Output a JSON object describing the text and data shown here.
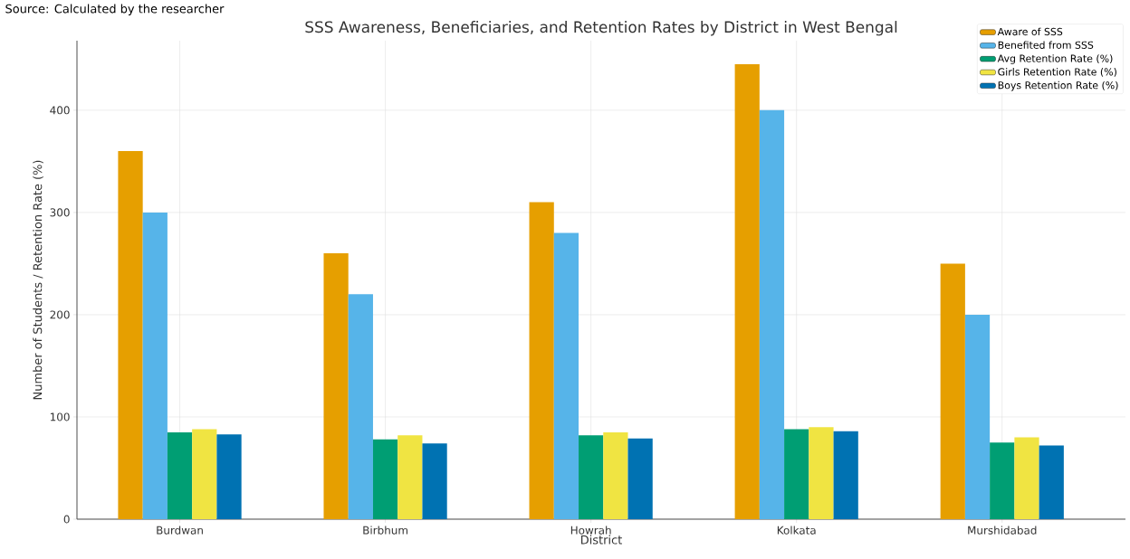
{
  "chart_data": {
    "type": "bar",
    "title": "SSS Awareness, Beneficiaries, and Retention Rates by District in West Bengal",
    "xlabel": "District",
    "ylabel": "Number of Students / Retention Rate (%)",
    "annotations": [
      "Source: Calculated by the researcher"
    ],
    "categories": [
      "Burdwan",
      "Birbhum",
      "Howrah",
      "Kolkata",
      "Murshidabad"
    ],
    "series": [
      {
        "name": "Aware of SSS",
        "color": "#e69f00",
        "values": [
          360,
          260,
          310,
          445,
          250
        ]
      },
      {
        "name": "Benefited from SSS",
        "color": "#56b4e9",
        "values": [
          300,
          220,
          280,
          400,
          200
        ]
      },
      {
        "name": "Avg Retention Rate (%)",
        "color": "#009e73",
        "values": [
          85,
          78,
          82,
          88,
          75
        ]
      },
      {
        "name": "Girls Retention Rate (%)",
        "color": "#f0e442",
        "values": [
          88,
          82,
          85,
          90,
          80
        ]
      },
      {
        "name": "Boys Retention Rate (%)",
        "color": "#0072b2",
        "values": [
          83,
          74,
          79,
          86,
          72
        ]
      }
    ],
    "ylim": [
      0,
      468
    ],
    "yticks": [
      0,
      100,
      200,
      300,
      400
    ],
    "grid": true,
    "legend": "top right"
  }
}
